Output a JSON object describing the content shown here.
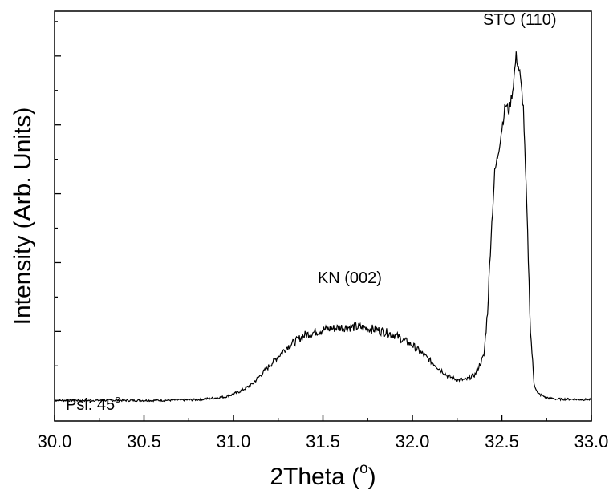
{
  "chart_data": {
    "type": "line",
    "title": "",
    "xlabel": "2Theta (",
    "xlabel_super": "o",
    "xlabel_suffix": ")",
    "ylabel": "Intensity (Arb. Units)",
    "xlim": [
      30.0,
      33.0
    ],
    "ylim": [
      -0.06,
      1.13
    ],
    "x_ticks": [
      "30.0",
      "30.5",
      "31.0",
      "31.5",
      "32.0",
      "32.5",
      "33.0"
    ],
    "y_tick_labels_shown": false,
    "grid": false,
    "legend": "none",
    "series": [
      {
        "x": [
          30.0,
          30.3,
          30.6,
          30.8,
          30.95,
          31.0,
          31.05,
          31.1,
          31.2,
          31.3,
          31.4,
          31.5,
          31.6,
          31.7,
          31.8,
          31.9,
          32.0,
          32.1,
          32.2,
          32.25,
          32.3,
          32.35,
          32.4,
          32.42,
          32.44,
          32.46,
          32.48,
          32.5,
          32.52,
          32.54,
          32.56,
          32.58,
          32.6,
          32.62,
          32.64,
          32.66,
          32.68,
          32.7,
          32.75,
          32.8,
          33.0
        ],
        "y": [
          0.0,
          0.0,
          0.0,
          0.002,
          0.01,
          0.018,
          0.03,
          0.045,
          0.1,
          0.155,
          0.19,
          0.205,
          0.212,
          0.213,
          0.205,
          0.19,
          0.16,
          0.115,
          0.07,
          0.06,
          0.06,
          0.075,
          0.13,
          0.26,
          0.48,
          0.66,
          0.72,
          0.79,
          0.86,
          0.84,
          0.9,
          1.0,
          0.95,
          0.85,
          0.55,
          0.2,
          0.05,
          0.02,
          0.008,
          0.004,
          0.002
        ]
      }
    ],
    "annotations": [
      {
        "text": "KN (002)",
        "x": 31.65,
        "y": 0.34
      },
      {
        "text": "STO (110)",
        "x": 32.6,
        "y": 1.09
      }
    ],
    "corner_label": "Psi: 45",
    "corner_label_super": "o"
  }
}
